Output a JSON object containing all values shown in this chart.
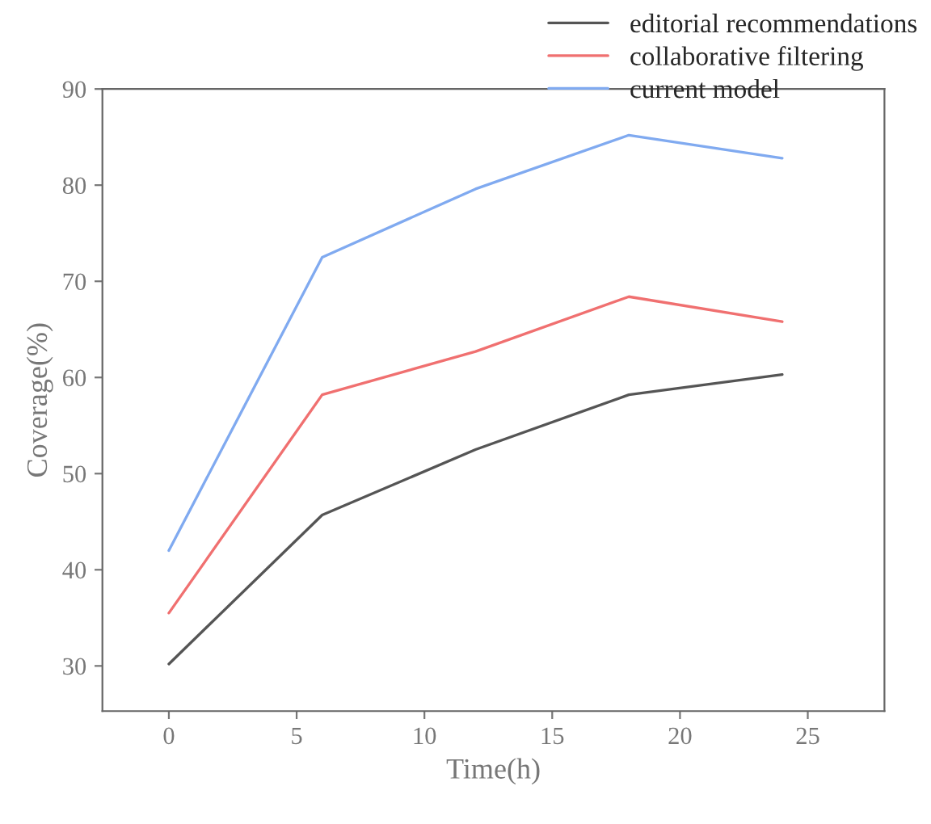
{
  "chart_data": {
    "type": "line",
    "xlabel": "Time(h)",
    "ylabel": "Coverage(%)",
    "x": [
      0,
      6,
      12,
      18,
      24
    ],
    "series": [
      {
        "name": "editorial recommendations",
        "color": "#555555",
        "values": [
          30.2,
          45.7,
          52.5,
          58.2,
          60.3
        ]
      },
      {
        "name": "collaborative filtering",
        "color": "#f07070",
        "values": [
          35.5,
          58.2,
          62.7,
          68.4,
          65.8
        ]
      },
      {
        "name": "current model",
        "color": "#80aaf0",
        "values": [
          42.0,
          72.5,
          79.6,
          85.2,
          82.8
        ]
      }
    ],
    "xlim": [
      -2.6,
      28
    ],
    "ylim": [
      25.3,
      90
    ],
    "xticks": [
      0,
      5,
      10,
      15,
      20,
      25
    ],
    "yticks": [
      30,
      40,
      50,
      60,
      70,
      80,
      90
    ],
    "grid": false,
    "legend": "top right",
    "marker": "none",
    "line_style": "solid"
  }
}
